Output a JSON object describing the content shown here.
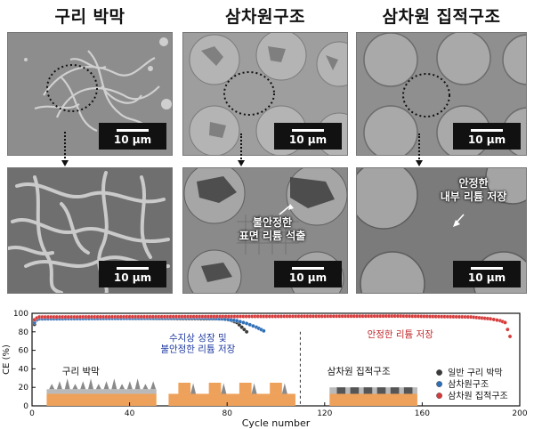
{
  "columns": [
    {
      "title": "구리 박막",
      "scale_top": "10 μm",
      "scale_bottom": "10 μm"
    },
    {
      "title": "삼차원구조",
      "scale_top": "10 μm",
      "scale_bottom": "10 μm",
      "annotation": "불안정한\n표면 리튬 석출"
    },
    {
      "title": "삼차원 집적구조",
      "scale_top": "10 μm",
      "scale_bottom": "10 μm",
      "annotation": "안정한\n내부 리튬 저장"
    }
  ],
  "chart_data": {
    "type": "scatter",
    "xlabel": "Cycle number",
    "ylabel": "CE (%)",
    "xlim": [
      0,
      200
    ],
    "ylim": [
      0,
      100
    ],
    "xticks": [
      0,
      40,
      80,
      120,
      160,
      200
    ],
    "yticks": [
      0,
      20,
      40,
      60,
      80,
      100
    ],
    "series": [
      {
        "name": "일반 구리 박막",
        "color": "#3a3a3a",
        "x": [
          1,
          2,
          3,
          80,
          82,
          84,
          86,
          88
        ],
        "y": [
          88,
          93,
          95,
          94,
          92,
          90,
          85,
          80
        ]
      },
      {
        "name": "삼차원구조",
        "color": "#2e6fb7",
        "x": [
          1,
          2,
          3,
          70,
          78,
          84,
          88,
          92,
          95
        ],
        "y": [
          90,
          93,
          94,
          95,
          94,
          92,
          89,
          85,
          81
        ]
      },
      {
        "name": "삼차원 집적구조",
        "color": "#d63b3b",
        "x": [
          1,
          2,
          3,
          150,
          180,
          188,
          192,
          194,
          196
        ],
        "y": [
          93,
          95,
          96,
          97,
          96,
          94,
          92,
          90,
          75
        ]
      }
    ],
    "annotations": [
      "수지상 성장 및\n불안정한 리튬 저장",
      "안정한 리튬 저장"
    ],
    "inset_labels": [
      "구리 박막",
      "삼차원 집적구조"
    ],
    "colors": {
      "copper": "#eea15a",
      "film": "#b9b9b9",
      "dendrite": "#8a8a8a"
    }
  }
}
